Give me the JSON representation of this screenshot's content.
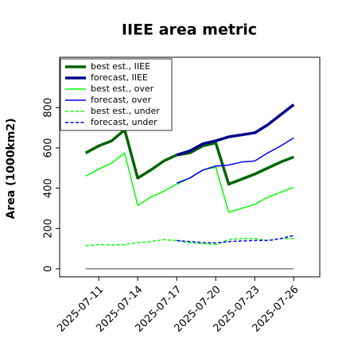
{
  "chart_data": {
    "type": "line",
    "title": "IIEE area metric",
    "ylabel": "Area (1000km2)",
    "x": [
      "2025-07-10",
      "2025-07-11",
      "2025-07-12",
      "2025-07-13",
      "2025-07-14",
      "2025-07-15",
      "2025-07-16",
      "2025-07-17",
      "2025-07-18",
      "2025-07-19",
      "2025-07-20",
      "2025-07-21",
      "2025-07-22",
      "2025-07-23",
      "2025-07-24",
      "2025-07-25",
      "2025-07-26"
    ],
    "xlim": [
      "2025-07-08",
      "2025-07-28"
    ],
    "xticks": [
      "2025-07-11",
      "2025-07-14",
      "2025-07-17",
      "2025-07-20",
      "2025-07-23",
      "2025-07-26"
    ],
    "xtick_label_colors": [
      "#000000",
      "#000000",
      "#228b22",
      "#000000",
      "#000000",
      "#000000"
    ],
    "ylim": [
      -40,
      1050
    ],
    "yticks": [
      0,
      200,
      400,
      600,
      800
    ],
    "hline": {
      "value": 0,
      "color": "#808080"
    },
    "legend": "upper left",
    "series": [
      {
        "name": "best est., IIEE",
        "color": "#006400",
        "linewidth": 3.5,
        "dashed": false,
        "values": [
          575,
          610,
          635,
          690,
          450,
          490,
          535,
          565,
          575,
          610,
          625,
          420,
          445,
          470,
          500,
          530,
          555
        ]
      },
      {
        "name": "forecast, IIEE",
        "color": "#00008b",
        "linewidth": 3.5,
        "dashed": false,
        "values": [
          null,
          null,
          null,
          null,
          null,
          null,
          null,
          565,
          585,
          620,
          635,
          655,
          665,
          675,
          715,
          765,
          815
        ]
      },
      {
        "name": "best est., over",
        "color": "#00ff00",
        "linewidth": 1.5,
        "dashed": false,
        "values": [
          460,
          495,
          525,
          575,
          315,
          355,
          385,
          420,
          450,
          490,
          505,
          280,
          300,
          320,
          355,
          380,
          405
        ]
      },
      {
        "name": "forecast, over",
        "color": "#0000ff",
        "linewidth": 1.5,
        "dashed": false,
        "values": [
          null,
          null,
          null,
          null,
          null,
          null,
          null,
          425,
          450,
          490,
          510,
          515,
          530,
          535,
          575,
          610,
          650
        ]
      },
      {
        "name": "best est., under",
        "color": "#00ff00",
        "linewidth": 1.5,
        "dashed": true,
        "values": [
          115,
          120,
          118,
          120,
          130,
          135,
          145,
          140,
          130,
          125,
          120,
          145,
          150,
          150,
          140,
          150,
          150
        ]
      },
      {
        "name": "forecast, under",
        "color": "#0000ff",
        "linewidth": 1.5,
        "dashed": true,
        "values": [
          null,
          null,
          null,
          null,
          null,
          null,
          null,
          140,
          135,
          130,
          128,
          135,
          138,
          140,
          140,
          150,
          165
        ]
      }
    ]
  }
}
